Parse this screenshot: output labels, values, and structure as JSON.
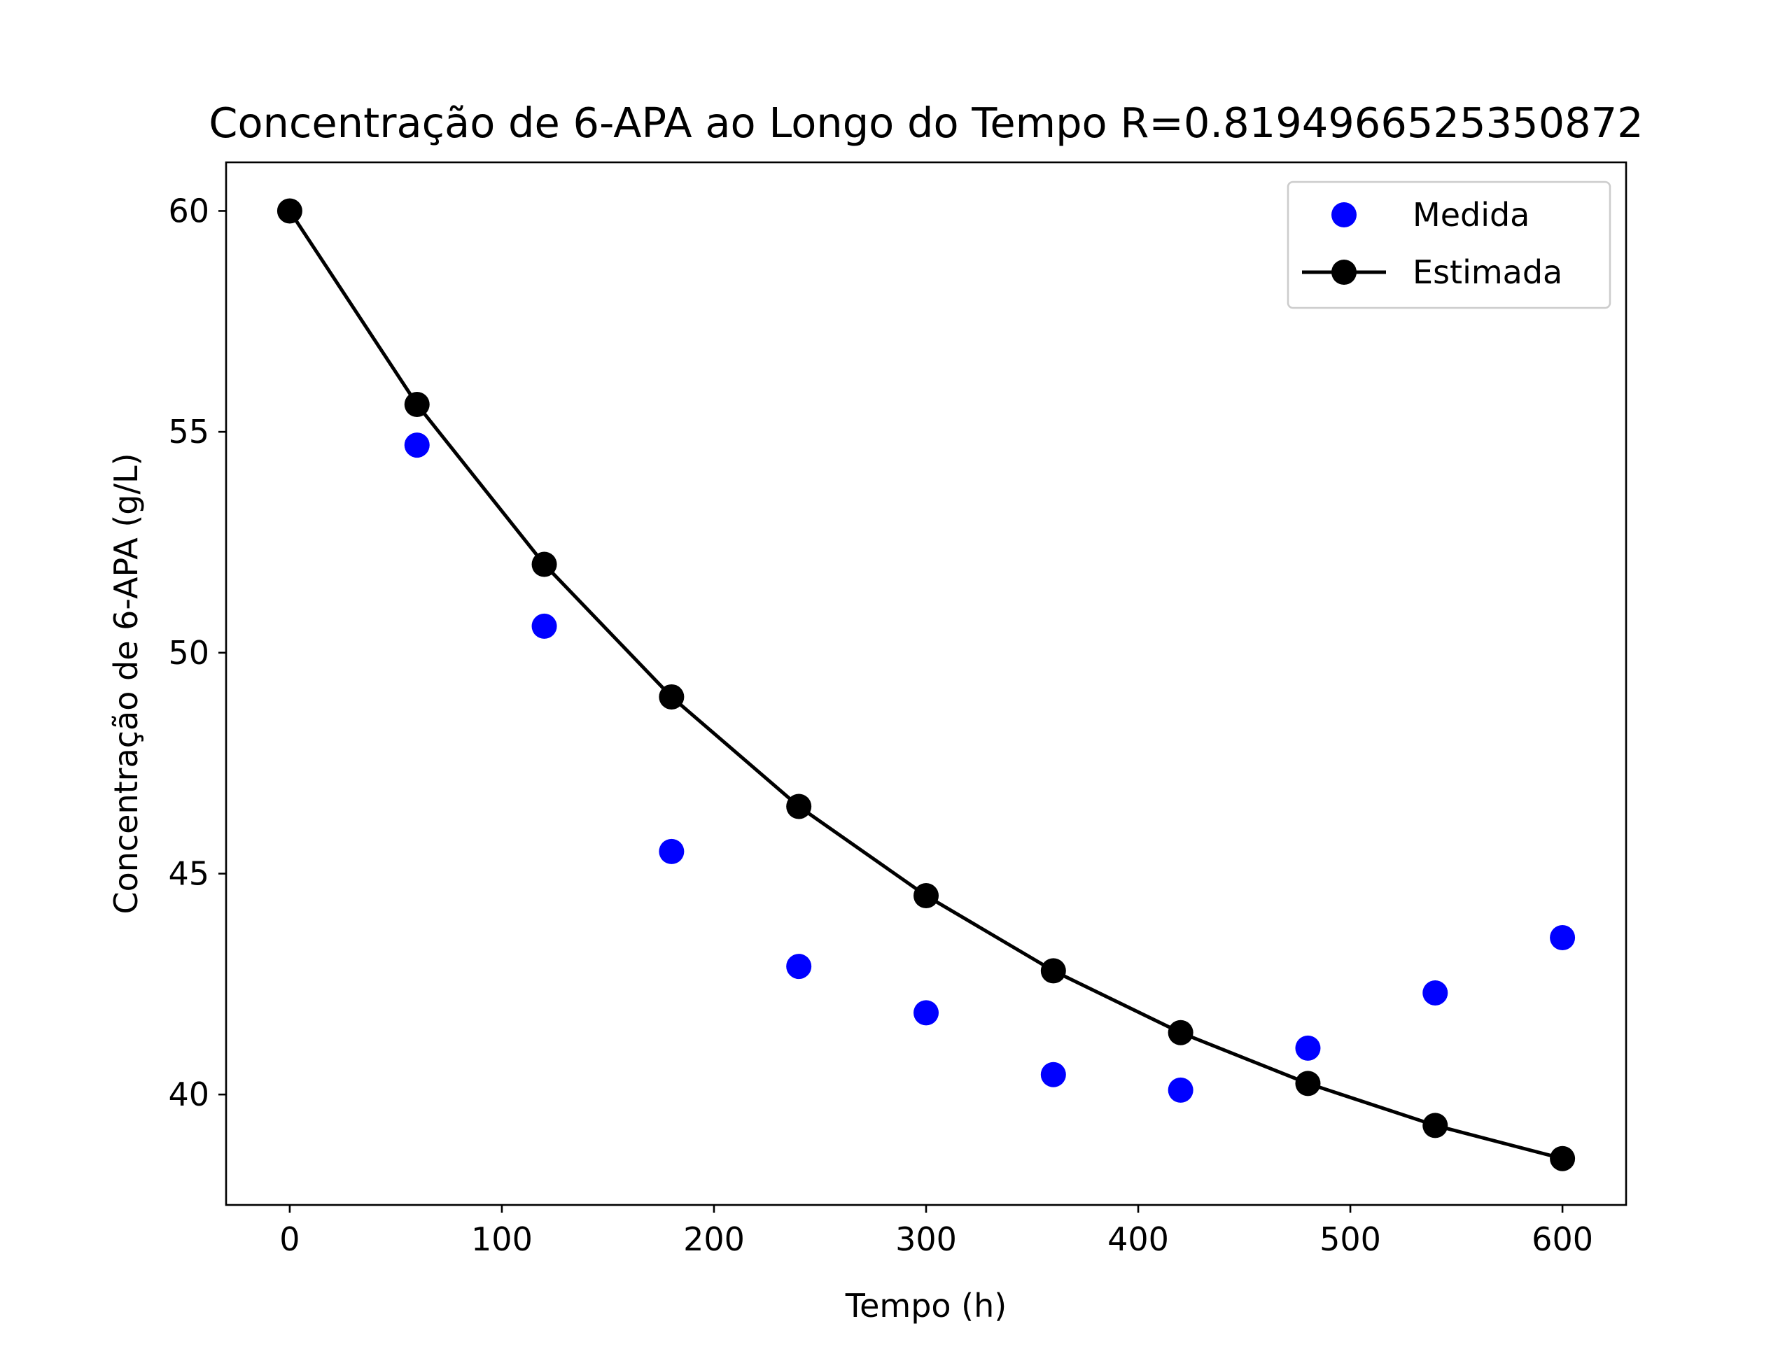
{
  "chart_data": {
    "type": "scatter",
    "title": "Concentração de 6-APA ao Longo do Tempo R=0.8194966525350872",
    "xlabel": "Tempo (h)",
    "ylabel": "Concentração de 6-APA (g/L)",
    "xlim": [
      -30,
      630
    ],
    "ylim": [
      37.5,
      61.1
    ],
    "xticks": [
      0,
      100,
      200,
      300,
      400,
      500,
      600
    ],
    "yticks": [
      40,
      45,
      50,
      55,
      60
    ],
    "grid": false,
    "legend_position": "top-right",
    "series": [
      {
        "name": "Medida",
        "kind": "markers",
        "color": "#0000ff",
        "x": [
          60,
          120,
          180,
          240,
          300,
          360,
          420,
          480,
          540,
          600
        ],
        "y": [
          54.7,
          50.6,
          45.5,
          42.9,
          41.85,
          40.45,
          40.1,
          41.05,
          42.3,
          43.55
        ]
      },
      {
        "name": "Estimada",
        "kind": "line-markers",
        "color": "#000000",
        "x": [
          0,
          60,
          120,
          180,
          240,
          300,
          360,
          420,
          480,
          540,
          600
        ],
        "y": [
          60.0,
          55.62,
          52.0,
          49.0,
          46.52,
          44.5,
          42.8,
          41.4,
          40.25,
          39.3,
          38.55
        ]
      }
    ]
  }
}
